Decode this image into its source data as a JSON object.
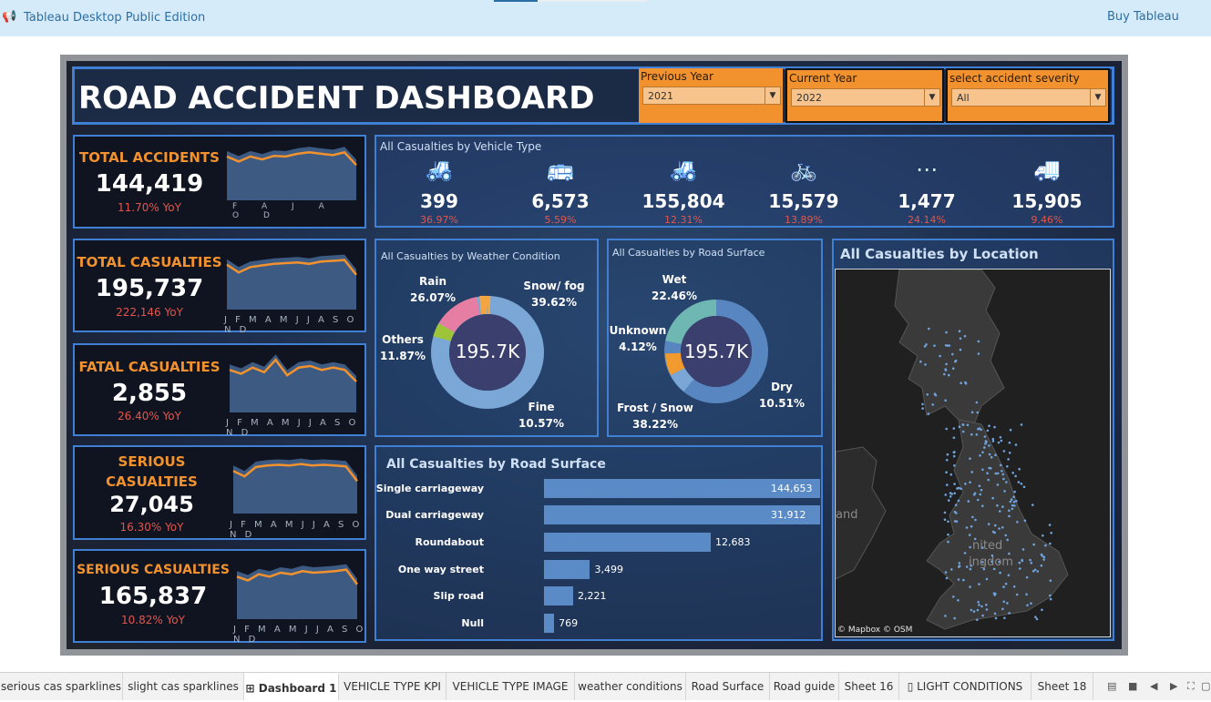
{
  "app": {
    "title": "Tableau Desktop Public Edition",
    "buy_label": "Buy Tableau"
  },
  "dashboard": {
    "title": "ROAD ACCIDENT DASHBOARD"
  },
  "filters": {
    "previous_year": {
      "label": "Previous  Year",
      "value": "2021"
    },
    "current_year": {
      "label": "Current Year",
      "value": "2022"
    },
    "severity": {
      "label": "select accident severity",
      "value": "All"
    }
  },
  "kpis": {
    "total_accidents": {
      "title": "TOTAL ACCIDENTS",
      "value": "144,419",
      "yoy": "11.70% YoY",
      "months": "F A J A O D",
      "sparkline": [
        62,
        55,
        62,
        58,
        63,
        62,
        66,
        68,
        66,
        64,
        68,
        50
      ]
    },
    "total_casualties": {
      "title": "TOTAL CASUALTIES",
      "value": "195,737",
      "yoy": "222,146  YoY",
      "months": "J F M A M J J A S O N D",
      "sparkline": [
        58,
        48,
        55,
        57,
        59,
        60,
        61,
        59,
        62,
        63,
        64,
        45
      ]
    },
    "fatal_casualties": {
      "title": "FATAL CASUALTIES",
      "value": "2,855",
      "yoy": "26.40%   YoY",
      "months": "J F M A M J J A S O N D",
      "sparkline": [
        55,
        50,
        58,
        52,
        68,
        48,
        58,
        60,
        55,
        58,
        55,
        40
      ]
    },
    "serious_casualties_1": {
      "title": "SERIOUS CASUALTIES",
      "value": "27,045",
      "yoy": "16.30%   YoY",
      "months": "J F M A M J J A S O N D",
      "sparkline": [
        55,
        48,
        60,
        62,
        63,
        62,
        64,
        62,
        63,
        62,
        61,
        42
      ]
    },
    "serious_casualties_2": {
      "title": "SERIOUS CASUALTIES",
      "value": "165,837",
      "yoy": "10.82%   YoY",
      "months": "J F M A M J J A S O N D",
      "sparkline": [
        55,
        50,
        58,
        55,
        60,
        58,
        62,
        60,
        61,
        62,
        64,
        45
      ]
    }
  },
  "vehicle_type": {
    "title": "All Casualties by Vehicle Type",
    "items": [
      {
        "icon": "tractor-icon",
        "glyph": "🚜",
        "value": "399",
        "pct": "36.97%"
      },
      {
        "icon": "bus-icon",
        "glyph": "🚌",
        "value": "6,573",
        "pct": "5.59%"
      },
      {
        "icon": "tractor-icon",
        "glyph": "🚜",
        "value": "155,804",
        "pct": "12.31%"
      },
      {
        "icon": "bicycle-icon",
        "glyph": "🚲",
        "value": "15,579",
        "pct": "13.89%"
      },
      {
        "icon": "other-vehicle-icon",
        "glyph": "⋯",
        "value": "1,477",
        "pct": "24.14%"
      },
      {
        "icon": "truck-icon",
        "glyph": "🚚",
        "value": "15,905",
        "pct": "9.46%"
      }
    ]
  },
  "weather": {
    "title": "All Casualties by Weather Condition",
    "center": "195.7K",
    "labels": {
      "rain": {
        "name": "Rain",
        "pct": "26.07%"
      },
      "snow_fog": {
        "name": "Snow/ fog",
        "pct": "39.62%"
      },
      "others": {
        "name": "Others",
        "pct": "11.87%"
      },
      "fine": {
        "name": "Fine",
        "pct": "10.57%"
      }
    }
  },
  "road_surface_donut": {
    "title": "All Casualties by Road Surface",
    "center": "195.7K",
    "labels": {
      "wet": {
        "name": "Wet",
        "pct": "22.46%"
      },
      "unknown": {
        "name": "Unknown",
        "pct": "4.12%"
      },
      "dry": {
        "name": "Dry",
        "pct": "10.51%"
      },
      "frost_snow": {
        "name": "Frost / Snow",
        "pct": "38.22%"
      }
    }
  },
  "location": {
    "title": "All Casualties by Location",
    "credit": "© Mapbox © OSM",
    "map_labels": [
      "and",
      "nited",
      "ingdom"
    ]
  },
  "chart_data": {
    "type": "bar",
    "title": "All Casualties by Road Surface",
    "categories": [
      "Single carriageway",
      "Dual carriageway",
      "Roundabout",
      "One way street",
      "Slip road",
      "Null"
    ],
    "values": [
      144653,
      31912,
      12683,
      3499,
      2221,
      769
    ],
    "value_labels": [
      "144,653",
      "31,912",
      "12,683",
      "3,499",
      "2,221",
      "769"
    ],
    "xlim": [
      0,
      21000
    ]
  },
  "sheet_tabs": [
    {
      "label": "serious cas sparklines"
    },
    {
      "label": "slight cas sparklines"
    },
    {
      "label": "Dashboard 1"
    },
    {
      "label": "VEHICLE TYPE KPI"
    },
    {
      "label": "VEHICLE TYPE IMAGE"
    },
    {
      "label": "weather conditions"
    },
    {
      "label": "Road Surface"
    },
    {
      "label": "Road guide"
    },
    {
      "label": "Sheet 16"
    },
    {
      "label": "LIGHT CONDITIONS"
    },
    {
      "label": "Sheet 18"
    }
  ],
  "colors": {
    "accent_orange": "#f2922f",
    "border_blue": "#3f7fd4",
    "yoy_red": "#e2554c",
    "bar_blue": "#5b8bc6"
  }
}
